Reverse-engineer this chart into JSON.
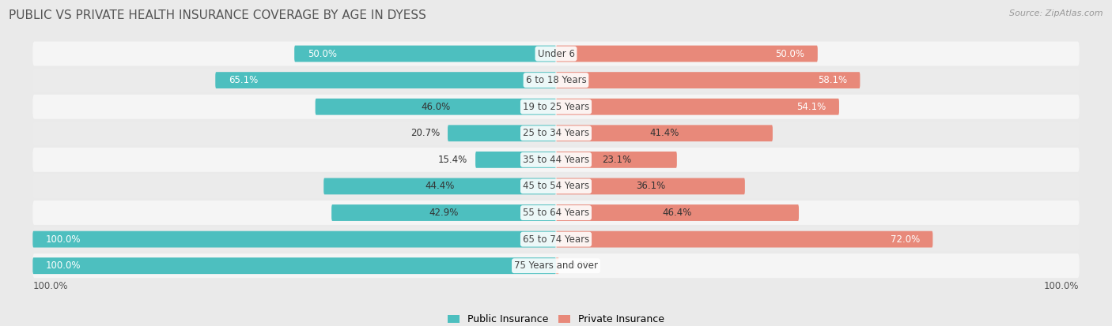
{
  "title": "PUBLIC VS PRIVATE HEALTH INSURANCE COVERAGE BY AGE IN DYESS",
  "source": "Source: ZipAtlas.com",
  "categories": [
    "Under 6",
    "6 to 18 Years",
    "19 to 25 Years",
    "25 to 34 Years",
    "35 to 44 Years",
    "45 to 54 Years",
    "55 to 64 Years",
    "65 to 74 Years",
    "75 Years and over"
  ],
  "public_values": [
    50.0,
    65.1,
    46.0,
    20.7,
    15.4,
    44.4,
    42.9,
    100.0,
    100.0
  ],
  "private_values": [
    50.0,
    58.1,
    54.1,
    41.4,
    23.1,
    36.1,
    46.4,
    72.0,
    0.0
  ],
  "public_color": "#4dbfbf",
  "private_color": "#e8897a",
  "private_color_light": "#f0b0a0",
  "bg_color": "#eaeaea",
  "row_bg_odd": "#f5f5f5",
  "row_bg_even": "#ebebeb",
  "bar_height": 0.62,
  "label_fontsize": 8.5,
  "title_fontsize": 11,
  "legend_fontsize": 9,
  "max_val": 100.0,
  "bottom_label": "100.0%"
}
